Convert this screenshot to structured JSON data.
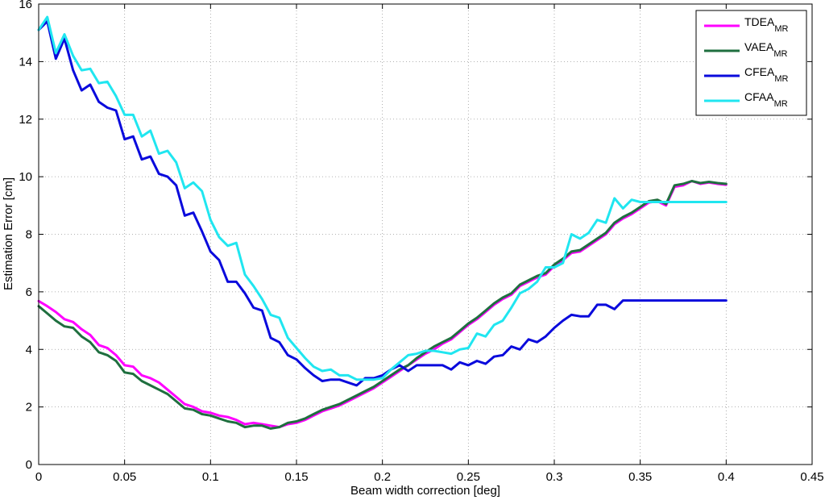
{
  "chart_data": {
    "type": "line",
    "title": "",
    "xlabel": "Beam width correction [deg]",
    "ylabel": "Estimation Error [cm]",
    "xlim": [
      0,
      0.45
    ],
    "ylim": [
      0,
      16
    ],
    "xticks": [
      "0",
      "0.05",
      "0.1",
      "0.15",
      "0.2",
      "0.25",
      "0.3",
      "0.35",
      "0.4",
      "0.45"
    ],
    "yticks": [
      "0",
      "2",
      "4",
      "6",
      "8",
      "10",
      "12",
      "14",
      "16"
    ],
    "grid": true,
    "legend_position": "top-right",
    "x": [
      0,
      0.005,
      0.01,
      0.015,
      0.02,
      0.025,
      0.03,
      0.035,
      0.04,
      0.045,
      0.05,
      0.055,
      0.06,
      0.065,
      0.07,
      0.075,
      0.08,
      0.085,
      0.09,
      0.095,
      0.1,
      0.105,
      0.11,
      0.115,
      0.12,
      0.125,
      0.13,
      0.135,
      0.14,
      0.145,
      0.15,
      0.155,
      0.16,
      0.165,
      0.17,
      0.175,
      0.18,
      0.185,
      0.19,
      0.195,
      0.2,
      0.205,
      0.21,
      0.215,
      0.22,
      0.225,
      0.23,
      0.235,
      0.24,
      0.245,
      0.25,
      0.255,
      0.26,
      0.265,
      0.27,
      0.275,
      0.28,
      0.285,
      0.29,
      0.295,
      0.3,
      0.305,
      0.31,
      0.315,
      0.32,
      0.325,
      0.33,
      0.335,
      0.34,
      0.345,
      0.35,
      0.355,
      0.36,
      0.365,
      0.37,
      0.375,
      0.38,
      0.385,
      0.39,
      0.395,
      0.4
    ],
    "series": [
      {
        "name": "TDEA",
        "subscript": "MR",
        "color": "#ff00ff",
        "values": [
          5.68,
          5.5,
          5.3,
          5.05,
          4.95,
          4.7,
          4.5,
          4.15,
          4.05,
          3.8,
          3.45,
          3.4,
          3.1,
          3.0,
          2.85,
          2.6,
          2.35,
          2.1,
          2.0,
          1.85,
          1.8,
          1.7,
          1.65,
          1.55,
          1.4,
          1.45,
          1.4,
          1.35,
          1.3,
          1.4,
          1.45,
          1.55,
          1.7,
          1.85,
          1.95,
          2.05,
          2.2,
          2.35,
          2.5,
          2.65,
          2.85,
          3.05,
          3.25,
          3.45,
          3.65,
          3.85,
          4.0,
          4.2,
          4.35,
          4.6,
          4.85,
          5.05,
          5.3,
          5.55,
          5.75,
          5.9,
          6.2,
          6.35,
          6.5,
          6.6,
          6.9,
          7.1,
          7.35,
          7.4,
          7.6,
          7.8,
          8.0,
          8.35,
          8.55,
          8.7,
          8.9,
          9.1,
          9.15,
          9.0,
          9.65,
          9.7,
          9.85,
          9.75,
          9.8,
          9.75,
          9.72
        ]
      },
      {
        "name": "VAEA",
        "subscript": "MR",
        "color": "#1f6f3f",
        "values": [
          5.5,
          5.25,
          5.0,
          4.8,
          4.75,
          4.45,
          4.25,
          3.9,
          3.8,
          3.6,
          3.2,
          3.15,
          2.9,
          2.75,
          2.6,
          2.45,
          2.2,
          1.95,
          1.9,
          1.75,
          1.7,
          1.6,
          1.5,
          1.45,
          1.3,
          1.35,
          1.35,
          1.25,
          1.3,
          1.45,
          1.5,
          1.6,
          1.75,
          1.9,
          2.0,
          2.1,
          2.25,
          2.4,
          2.55,
          2.7,
          2.9,
          3.1,
          3.3,
          3.45,
          3.7,
          3.9,
          4.1,
          4.25,
          4.4,
          4.65,
          4.9,
          5.1,
          5.35,
          5.6,
          5.8,
          5.95,
          6.25,
          6.4,
          6.55,
          6.65,
          6.95,
          7.15,
          7.4,
          7.45,
          7.65,
          7.85,
          8.05,
          8.4,
          8.6,
          8.75,
          8.95,
          9.15,
          9.2,
          9.05,
          9.7,
          9.75,
          9.85,
          9.78,
          9.82,
          9.78,
          9.75
        ]
      },
      {
        "name": "CFEA",
        "subscript": "MR",
        "color": "#0a0adc",
        "values": [
          15.1,
          15.4,
          14.1,
          14.8,
          13.7,
          13.0,
          13.2,
          12.6,
          12.4,
          12.3,
          11.3,
          11.4,
          10.6,
          10.7,
          10.1,
          10.0,
          9.7,
          8.65,
          8.75,
          8.1,
          7.4,
          7.1,
          6.35,
          6.35,
          5.95,
          5.45,
          5.35,
          4.4,
          4.25,
          3.8,
          3.65,
          3.35,
          3.1,
          2.9,
          2.95,
          2.95,
          2.85,
          2.75,
          3.0,
          3.0,
          3.1,
          3.3,
          3.45,
          3.25,
          3.45,
          3.45,
          3.45,
          3.45,
          3.3,
          3.55,
          3.45,
          3.6,
          3.5,
          3.75,
          3.8,
          4.1,
          4.0,
          4.35,
          4.25,
          4.45,
          4.75,
          5.0,
          5.2,
          5.15,
          5.15,
          5.55,
          5.55,
          5.4,
          5.7,
          5.7,
          5.7,
          5.7,
          5.7,
          5.7,
          5.7,
          5.7,
          5.7,
          5.7,
          5.7,
          5.7,
          5.7
        ]
      },
      {
        "name": "CFAA",
        "subscript": "MR",
        "color": "#20e6f0",
        "values": [
          15.1,
          15.55,
          14.3,
          14.95,
          14.2,
          13.7,
          13.75,
          13.25,
          13.3,
          12.8,
          12.15,
          12.15,
          11.4,
          11.6,
          10.8,
          10.9,
          10.5,
          9.6,
          9.8,
          9.5,
          8.5,
          7.9,
          7.6,
          7.7,
          6.6,
          6.2,
          5.75,
          5.2,
          5.1,
          4.4,
          4.05,
          3.7,
          3.4,
          3.25,
          3.3,
          3.1,
          3.1,
          2.95,
          2.95,
          2.95,
          3.0,
          3.3,
          3.55,
          3.8,
          3.85,
          3.95,
          3.95,
          3.9,
          3.85,
          4.0,
          4.05,
          4.55,
          4.45,
          4.85,
          5.0,
          5.45,
          5.95,
          6.1,
          6.35,
          6.85,
          6.85,
          7.0,
          8.0,
          7.85,
          8.05,
          8.5,
          8.4,
          9.25,
          8.9,
          9.2,
          9.12,
          9.12,
          9.12,
          9.12,
          9.12,
          9.12,
          9.12,
          9.12,
          9.12,
          9.12,
          9.12
        ]
      }
    ]
  }
}
